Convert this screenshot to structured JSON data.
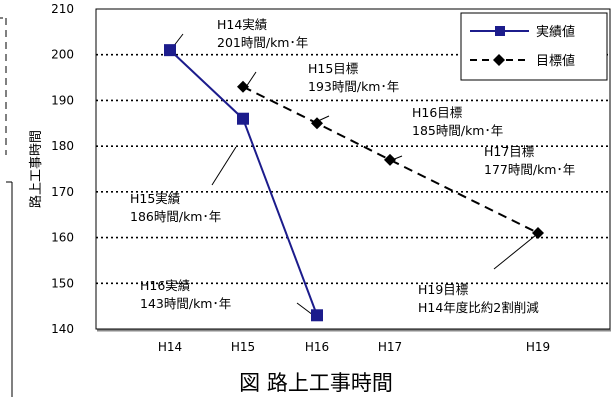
{
  "chart_data": {
    "type": "line",
    "title": "図 路上工事時間",
    "ylabel": "路上工事時間",
    "xlabel": "",
    "ylim": [
      140,
      210
    ],
    "yticks": [
      140,
      150,
      160,
      170,
      180,
      190,
      200,
      210
    ],
    "x_categories": [
      "H14",
      "H15",
      "H16",
      "H17",
      "H19"
    ],
    "grid": "horizontal-dotted",
    "legend_position": "top-right",
    "series": [
      {
        "name": "実績値",
        "style": "solid",
        "marker": "square",
        "color": "#1c1c8c",
        "points": [
          {
            "x": "H14",
            "y": 201
          },
          {
            "x": "H15",
            "y": 186
          },
          {
            "x": "H16",
            "y": 143
          }
        ]
      },
      {
        "name": "目標値",
        "style": "dashed",
        "marker": "diamond",
        "color": "#000000",
        "points": [
          {
            "x": "H15",
            "y": 193
          },
          {
            "x": "H16",
            "y": 185
          },
          {
            "x": "H17",
            "y": 177
          },
          {
            "x": "H19",
            "y": 161
          }
        ]
      }
    ],
    "annotations": [
      {
        "line1": "H14実績",
        "line2": "201時間/km･年"
      },
      {
        "line1": "H15目標",
        "line2": "193時間/km･年"
      },
      {
        "line1": "H16目標",
        "line2": "185時間/km･年"
      },
      {
        "line1": "H17目標",
        "line2": "177時間/km･年"
      },
      {
        "line1": "H15実績",
        "line2": "186時間/km･年"
      },
      {
        "line1": "H19目標",
        "line2": "H14年度比約2割削減"
      },
      {
        "line1": "H16実績",
        "line2": "143時間/km･年"
      }
    ]
  }
}
